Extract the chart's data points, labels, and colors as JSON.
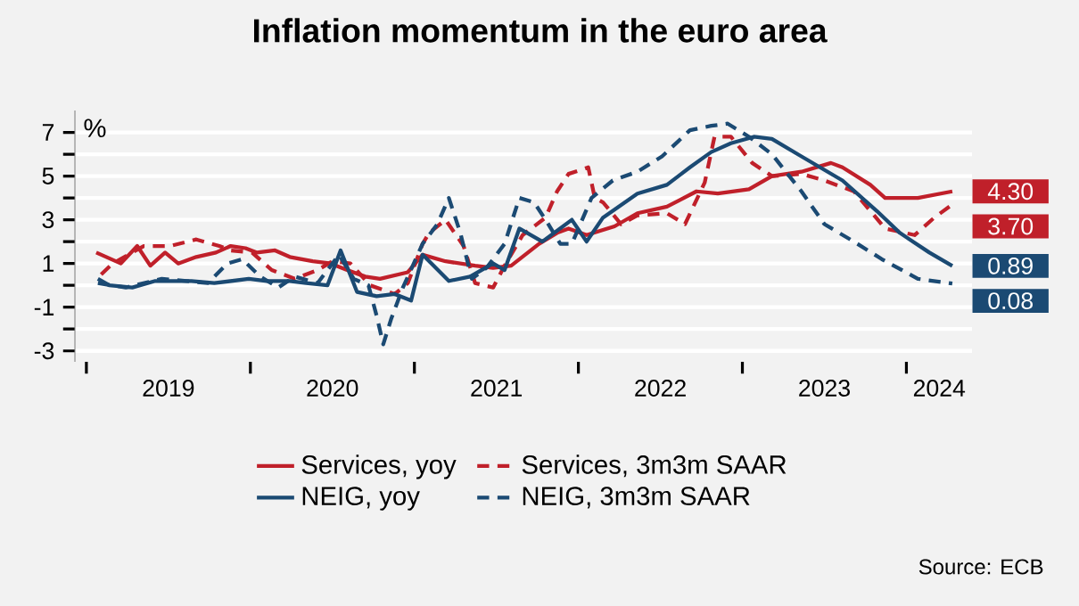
{
  "chart_data": {
    "type": "line",
    "title": "Inflation momentum in the euro area",
    "ylabel": "%",
    "annotations": [
      "Source: ECB"
    ],
    "xlim": [
      2018.93,
      2024.4
    ],
    "ylim": [
      -3.5,
      8
    ],
    "xticks": [
      {
        "value": 2019,
        "label": null
      },
      {
        "value": 2020,
        "label": null
      },
      {
        "value": 2021,
        "label": null
      },
      {
        "value": 2022,
        "label": null
      },
      {
        "value": 2023,
        "label": null
      },
      {
        "value": 2024,
        "label": null
      },
      {
        "value": 2019.5,
        "label": "2019"
      },
      {
        "value": 2020.5,
        "label": "2020"
      },
      {
        "value": 2021.5,
        "label": "2021"
      },
      {
        "value": 2022.5,
        "label": "2022"
      },
      {
        "value": 2023.5,
        "label": "2023"
      },
      {
        "value": 2024.2,
        "label": "2024"
      }
    ],
    "yticks": [
      -3,
      {
        "value": -2,
        "label": null
      },
      -1,
      {
        "value": 0,
        "label": null
      },
      1,
      {
        "value": 2,
        "label": null
      },
      3,
      {
        "value": 4,
        "label": null
      },
      5,
      {
        "value": 6,
        "label": null
      },
      7
    ],
    "grid": "y",
    "legend": "bottom",
    "series": [
      {
        "name": "Services, yoy",
        "color": "#c0202a",
        "line_style": "solid",
        "x": [
          2019.06,
          2019.21,
          2019.31,
          2019.39,
          2019.48,
          2019.56,
          2019.67,
          2019.79,
          2019.88,
          2019.97,
          2020.04,
          2020.15,
          2020.24,
          2020.38,
          2020.49,
          2020.59,
          2020.7,
          2020.79,
          2020.96,
          2021.05,
          2021.19,
          2021.37,
          2021.48,
          2021.59,
          2021.76,
          2021.87,
          2021.94,
          2022.05,
          2022.22,
          2022.36,
          2022.54,
          2022.72,
          2022.85,
          2023.04,
          2023.18,
          2023.36,
          2023.54,
          2023.61,
          2023.78,
          2023.87,
          2024.07,
          2024.28
        ],
        "values": [
          1.5,
          1.0,
          1.8,
          0.9,
          1.5,
          1.0,
          1.3,
          1.5,
          1.8,
          1.7,
          1.5,
          1.6,
          1.3,
          1.1,
          1.0,
          0.7,
          0.4,
          0.3,
          0.6,
          1.4,
          1.1,
          0.9,
          0.8,
          0.9,
          1.9,
          2.4,
          2.6,
          2.3,
          2.7,
          3.3,
          3.6,
          4.3,
          4.2,
          4.4,
          5.0,
          5.2,
          5.6,
          5.4,
          4.6,
          4.0,
          4.0,
          4.3
        ],
        "value_labels": [
          null,
          null,
          null,
          null,
          null,
          null,
          null,
          null,
          null,
          null,
          null,
          null,
          null,
          null,
          null,
          null,
          null,
          null,
          null,
          null,
          null,
          null,
          null,
          null,
          null,
          null,
          null,
          null,
          null,
          null,
          null,
          null,
          null,
          null,
          null,
          null,
          null,
          null,
          null,
          null,
          null,
          "4.30"
        ]
      },
      {
        "name": "Services, 3m3m SAAR",
        "color": "#c0202a",
        "line_style": "dashed",
        "x": [
          2019.09,
          2019.16,
          2019.35,
          2019.51,
          2019.67,
          2019.81,
          2019.88,
          2020.01,
          2020.13,
          2020.27,
          2020.41,
          2020.5,
          2020.61,
          2020.73,
          2020.88,
          2020.96,
          2021.05,
          2021.09,
          2021.19,
          2021.3,
          2021.37,
          2021.48,
          2021.55,
          2021.66,
          2021.8,
          2021.87,
          2021.94,
          2022.06,
          2022.1,
          2022.15,
          2022.26,
          2022.36,
          2022.54,
          2022.65,
          2022.77,
          2022.83,
          2022.93,
          2023.06,
          2023.18,
          2023.36,
          2023.5,
          2023.68,
          2023.87,
          2024.05,
          2024.17,
          2024.28
        ],
        "values": [
          0.5,
          1.0,
          1.8,
          1.8,
          2.1,
          1.8,
          1.6,
          1.5,
          0.7,
          0.3,
          0.7,
          1.1,
          1.0,
          0.0,
          -0.4,
          0.1,
          1.9,
          2.4,
          3.0,
          1.8,
          0.1,
          -0.1,
          0.9,
          2.3,
          3.1,
          4.3,
          5.1,
          5.4,
          4.0,
          3.8,
          2.8,
          3.2,
          3.3,
          2.8,
          4.7,
          6.8,
          6.8,
          5.6,
          5.0,
          5.1,
          4.8,
          4.3,
          2.6,
          2.3,
          3.1,
          3.7
        ],
        "value_labels": [
          null,
          null,
          null,
          null,
          null,
          null,
          null,
          null,
          null,
          null,
          null,
          null,
          null,
          null,
          null,
          null,
          null,
          null,
          null,
          null,
          null,
          null,
          null,
          null,
          null,
          null,
          null,
          null,
          null,
          null,
          null,
          null,
          null,
          null,
          null,
          null,
          null,
          null,
          null,
          null,
          null,
          null,
          null,
          null,
          null,
          "3.70"
        ]
      },
      {
        "name": "NEIG, yoy",
        "color": "#1b4a73",
        "line_style": "solid",
        "x": [
          2019.07,
          2019.14,
          2019.28,
          2019.42,
          2019.64,
          2019.78,
          2019.99,
          2020.1,
          2020.24,
          2020.34,
          2020.47,
          2020.55,
          2020.65,
          2020.77,
          2020.88,
          2020.98,
          2021.05,
          2021.21,
          2021.34,
          2021.48,
          2021.55,
          2021.64,
          2021.78,
          2021.96,
          2022.05,
          2022.15,
          2022.36,
          2022.54,
          2022.68,
          2022.81,
          2022.93,
          2023.07,
          2023.18,
          2023.36,
          2023.61,
          2023.82,
          2023.96,
          2024.14,
          2024.28
        ],
        "values": [
          0.3,
          0.0,
          -0.1,
          0.2,
          0.2,
          0.1,
          0.3,
          0.2,
          0.2,
          0.1,
          0.0,
          1.6,
          -0.3,
          -0.5,
          -0.4,
          -0.7,
          1.4,
          0.2,
          0.4,
          1.0,
          0.7,
          2.6,
          2.0,
          3.0,
          2.0,
          3.1,
          4.2,
          4.6,
          5.4,
          6.1,
          6.5,
          6.8,
          6.7,
          5.9,
          4.8,
          3.4,
          2.4,
          1.5,
          0.89
        ],
        "value_labels": [
          null,
          null,
          null,
          null,
          null,
          null,
          null,
          null,
          null,
          null,
          null,
          null,
          null,
          null,
          null,
          null,
          null,
          null,
          null,
          null,
          null,
          null,
          null,
          null,
          null,
          null,
          null,
          null,
          null,
          null,
          null,
          null,
          null,
          null,
          null,
          null,
          null,
          null,
          "0.89"
        ]
      },
      {
        "name": "NEIG, 3m3m SAAR",
        "color": "#1b4a73",
        "line_style": "dashed",
        "x": [
          2019.07,
          2019.24,
          2019.46,
          2019.74,
          2019.86,
          2019.95,
          2020.06,
          2020.17,
          2020.27,
          2020.41,
          2020.54,
          2020.63,
          2020.72,
          2020.77,
          2020.81,
          2020.86,
          2020.93,
          2021.05,
          2021.14,
          2021.21,
          2021.28,
          2021.35,
          2021.44,
          2021.55,
          2021.64,
          2021.73,
          2021.8,
          2021.89,
          2021.96,
          2022.08,
          2022.21,
          2022.36,
          2022.51,
          2022.68,
          2022.81,
          2022.91,
          2023.04,
          2023.18,
          2023.36,
          2023.5,
          2023.68,
          2023.85,
          2024.07,
          2024.28
        ],
        "values": [
          0.1,
          -0.1,
          0.3,
          0.1,
          1.0,
          1.2,
          0.4,
          -0.1,
          0.4,
          0.1,
          1.4,
          0.3,
          0.0,
          -1.4,
          -2.7,
          -1.5,
          -0.1,
          1.9,
          2.8,
          4.0,
          2.4,
          0.3,
          0.8,
          1.9,
          4.0,
          3.8,
          3.0,
          1.9,
          1.9,
          4.0,
          4.8,
          5.2,
          5.9,
          7.1,
          7.3,
          7.4,
          6.8,
          6.0,
          4.3,
          2.8,
          2.0,
          1.2,
          0.3,
          0.08
        ],
        "value_labels": [
          null,
          null,
          null,
          null,
          null,
          null,
          null,
          null,
          null,
          null,
          null,
          null,
          null,
          null,
          null,
          null,
          null,
          null,
          null,
          null,
          null,
          null,
          null,
          null,
          null,
          null,
          null,
          null,
          null,
          null,
          null,
          null,
          null,
          null,
          null,
          null,
          null,
          null,
          null,
          null,
          null,
          null,
          null,
          "0.08"
        ]
      }
    ]
  }
}
